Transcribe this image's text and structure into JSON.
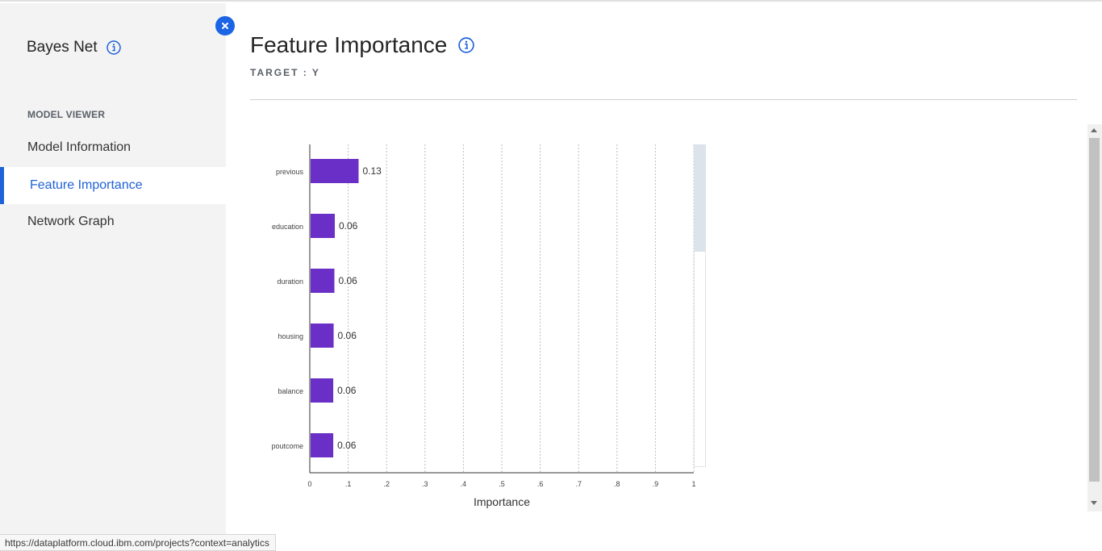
{
  "sidebar": {
    "title": "Bayes Net",
    "section_label": "MODEL VIEWER",
    "items": [
      {
        "label": "Model Information"
      },
      {
        "label": "Feature Importance"
      },
      {
        "label": "Network Graph"
      }
    ]
  },
  "main": {
    "title": "Feature Importance",
    "target": "TARGET : Y"
  },
  "status_url": "https://dataplatform.cloud.ibm.com/projects?context=analytics",
  "colors": {
    "accent": "#1f62d8",
    "bar": "#6a2fc6"
  },
  "chart_data": {
    "type": "bar",
    "orientation": "horizontal",
    "categories": [
      "previous",
      "education",
      "duration",
      "housing",
      "balance",
      "poutcome"
    ],
    "values": [
      0.125,
      0.063,
      0.062,
      0.06,
      0.059,
      0.059
    ],
    "value_labels": [
      "0.13",
      "0.06",
      "0.06",
      "0.06",
      "0.06",
      "0.06"
    ],
    "xlabel": "Importance",
    "xlim": [
      0,
      1
    ],
    "xticks": [
      0,
      0.1,
      0.2,
      0.3,
      0.4,
      0.5,
      0.6,
      0.7,
      0.8,
      0.9,
      1
    ],
    "xtick_labels": [
      "0",
      ".1",
      ".2",
      ".3",
      ".4",
      ".5",
      ".6",
      ".7",
      ".8",
      ".9",
      "1"
    ],
    "grid": "vertical dashed"
  }
}
